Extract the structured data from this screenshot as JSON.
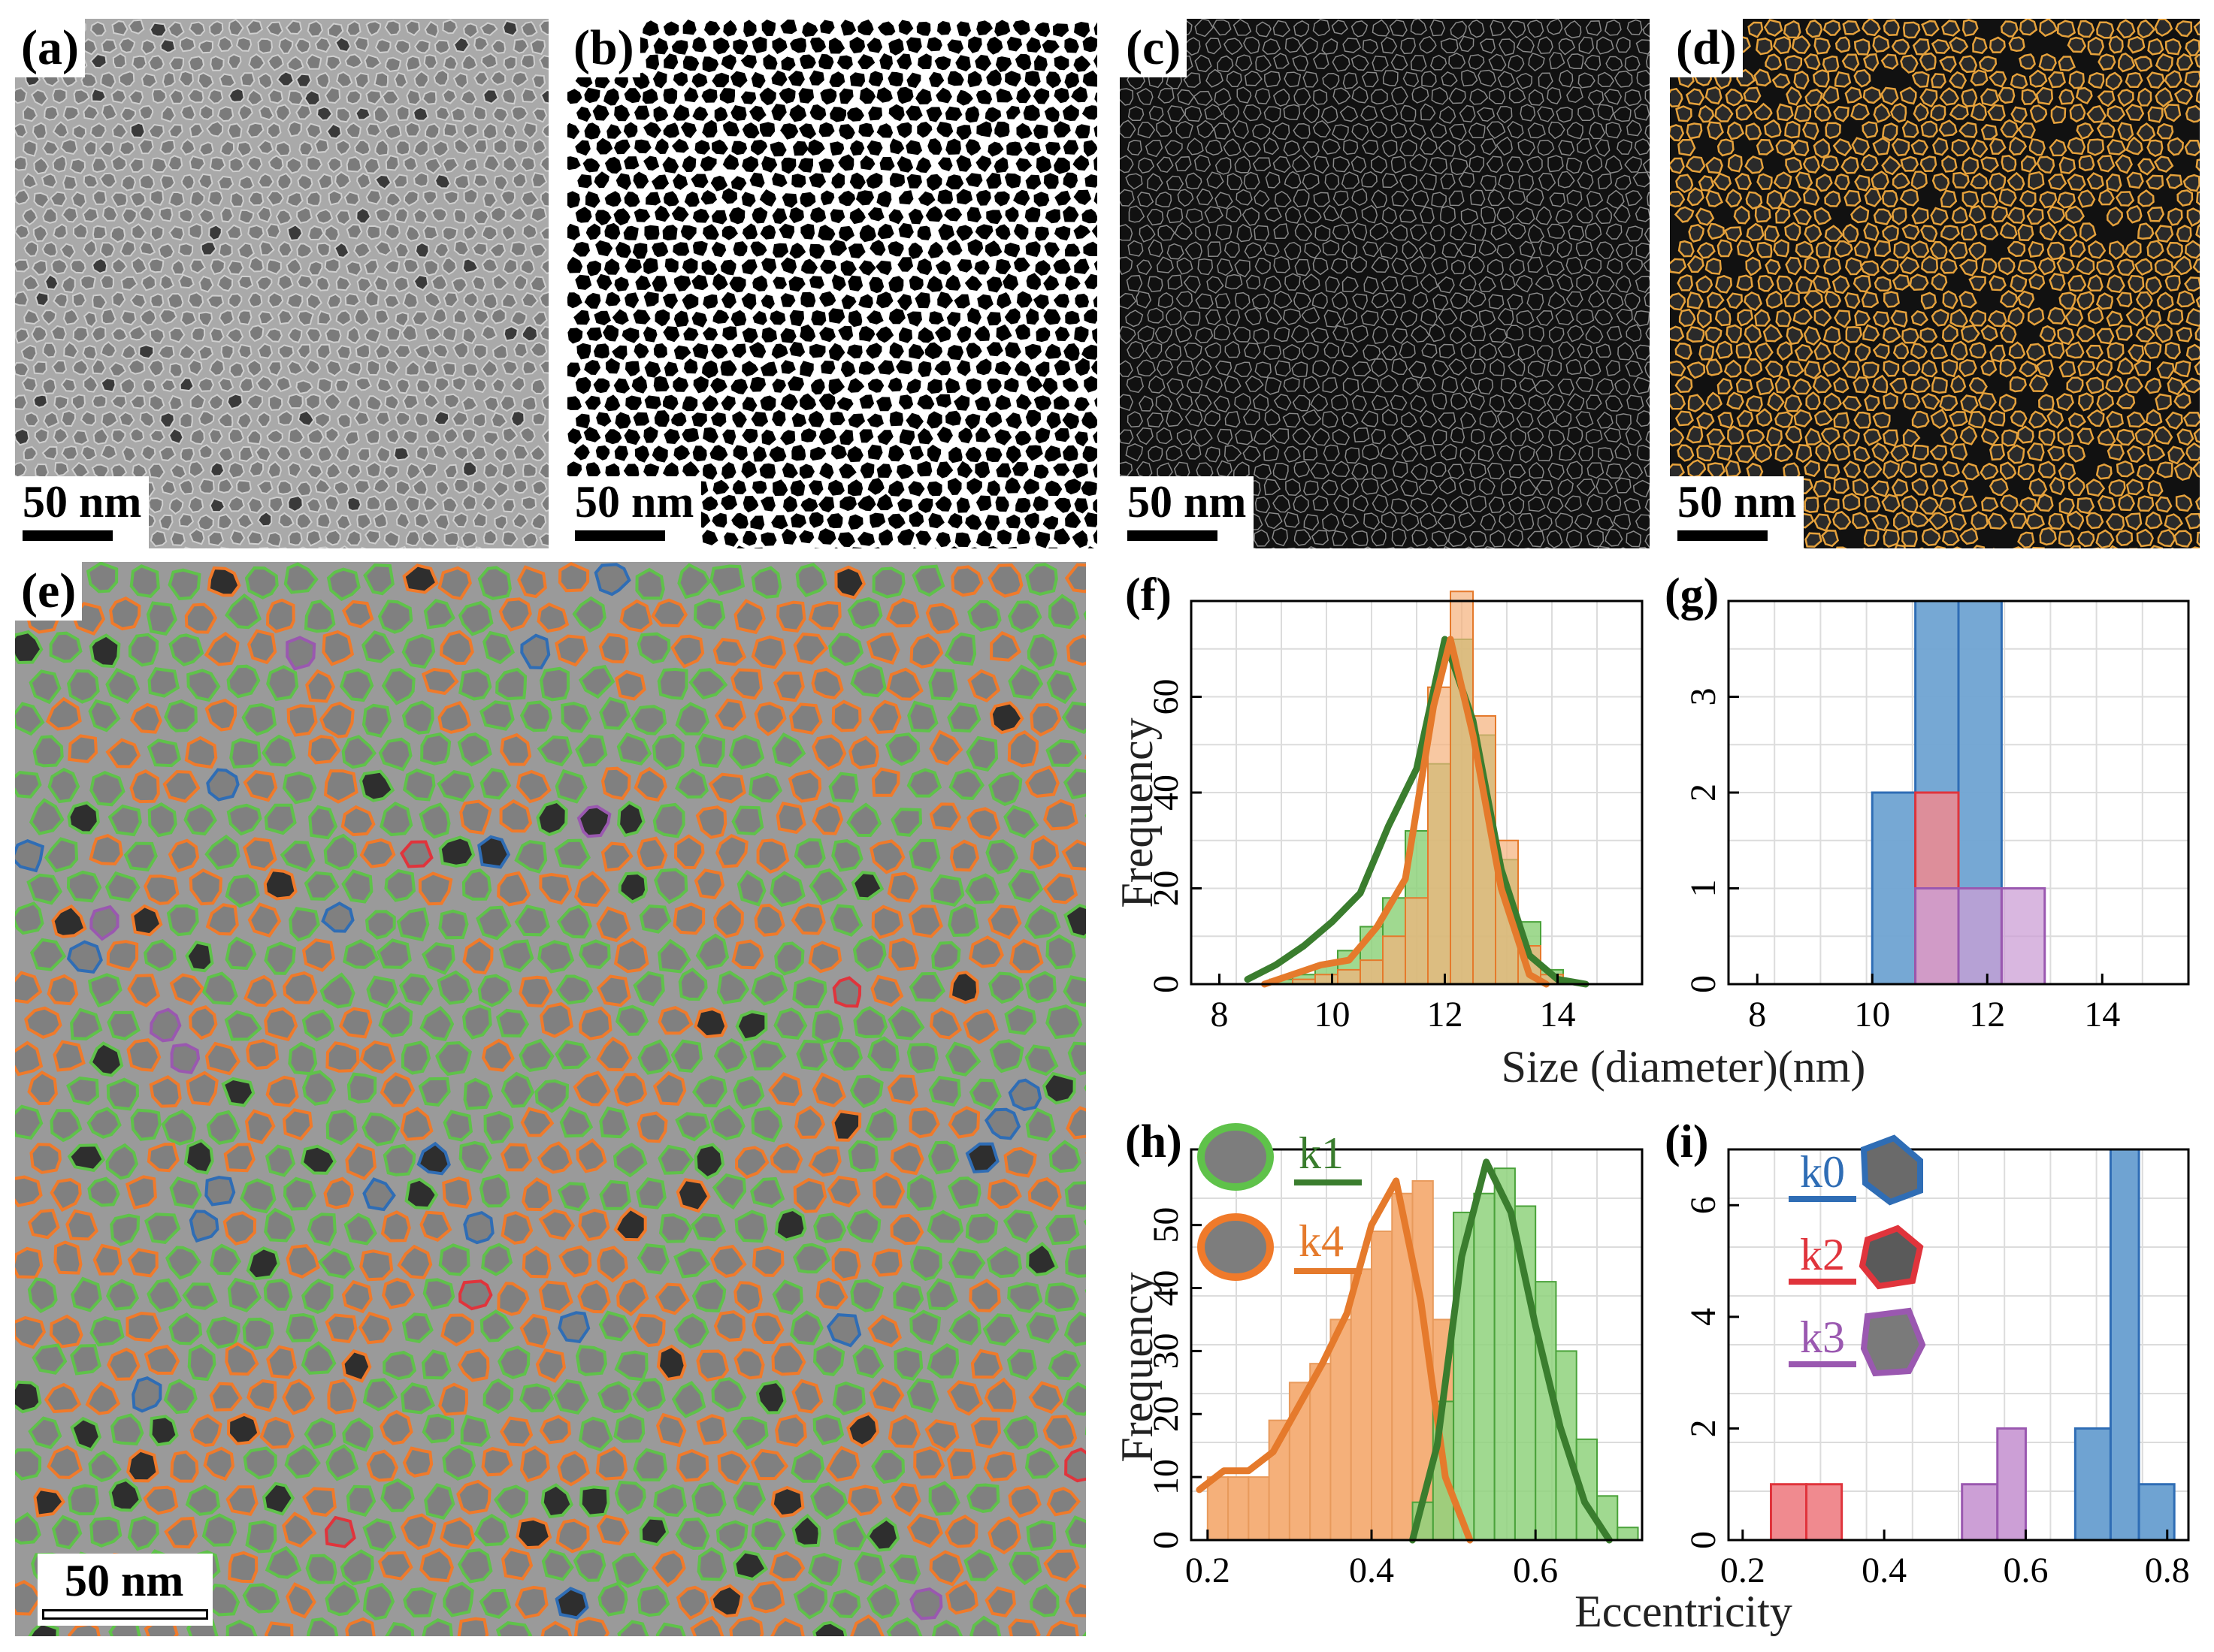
{
  "panels": {
    "a": {
      "label": "(a)",
      "scale_bar": "50 nm"
    },
    "b": {
      "label": "(b)",
      "scale_bar": "50 nm"
    },
    "c": {
      "label": "(c)",
      "scale_bar": "50 nm"
    },
    "d": {
      "label": "(d)",
      "scale_bar": "50 nm"
    },
    "e": {
      "label": "(e)",
      "scale_bar": "50 nm"
    },
    "f": {
      "label": "(f)"
    },
    "g": {
      "label": "(g)"
    },
    "h": {
      "label": "(h)"
    },
    "i": {
      "label": "(i)"
    }
  },
  "colors": {
    "k0": "#2f6db5",
    "k1": "#3a7d2e",
    "k2": "#e0343c",
    "k3": "#9a58b0",
    "k4": "#e57a2c",
    "k1_fill": "#8fd27c",
    "k4_fill": "#f5b07a",
    "k0_fill": "#6fa3d2",
    "k2_fill": "#f08a8f",
    "k3_fill": "#cc9fd6",
    "outline_d": "#e6a23c",
    "contour_green": "#5fc24a",
    "contour_orange": "#f07a2a"
  },
  "legend": {
    "k0": "k0",
    "k1": "k1",
    "k2": "k2",
    "k3": "k3",
    "k4": "k4"
  },
  "chart_data": [
    {
      "id": "f",
      "type": "bar",
      "xlabel": "Size (diameter)(nm)",
      "ylabel": "Frequency",
      "xlim": [
        7.5,
        15.5
      ],
      "ylim": [
        0,
        80
      ],
      "xticks": [
        8,
        10,
        12,
        14
      ],
      "yticks": [
        0,
        20,
        40,
        60
      ],
      "bin_edges": [
        8.5,
        8.9,
        9.3,
        9.7,
        10.1,
        10.5,
        10.9,
        11.3,
        11.7,
        12.1,
        12.5,
        12.9,
        13.3,
        13.7,
        14.1
      ],
      "series": [
        {
          "name": "k1",
          "values": [
            0,
            1,
            2,
            4,
            7,
            12,
            18,
            32,
            46,
            72,
            52,
            26,
            13,
            3
          ]
        },
        {
          "name": "k4",
          "values": [
            0,
            0,
            1,
            2,
            3,
            5,
            10,
            18,
            62,
            82,
            56,
            30,
            8,
            2
          ]
        }
      ],
      "kde": [
        {
          "name": "k1",
          "x": [
            8.5,
            9.0,
            9.5,
            10.0,
            10.5,
            11.0,
            11.5,
            12.0,
            12.5,
            13.0,
            13.5,
            14.0,
            14.5
          ],
          "y": [
            1,
            4,
            8,
            13,
            19,
            33,
            45,
            72,
            55,
            24,
            6,
            1,
            0
          ]
        },
        {
          "name": "k4",
          "x": [
            8.8,
            9.3,
            9.8,
            10.3,
            10.8,
            11.3,
            11.8,
            12.1,
            12.5,
            13.0,
            13.5,
            13.8
          ],
          "y": [
            0,
            2,
            4,
            5,
            12,
            22,
            58,
            72,
            52,
            20,
            2,
            0
          ]
        }
      ]
    },
    {
      "id": "g",
      "type": "bar",
      "xlabel": "Size (diameter)(nm)",
      "ylabel": "",
      "xlim": [
        7.5,
        15.5
      ],
      "ylim": [
        0,
        4
      ],
      "xticks": [
        8,
        10,
        12,
        14
      ],
      "yticks": [
        0,
        1,
        2,
        3
      ],
      "series": [
        {
          "name": "k0",
          "bins": [
            [
              10.0,
              10.75
            ],
            [
              10.75,
              11.5
            ],
            [
              11.5,
              12.25
            ]
          ],
          "values": [
            2,
            4,
            4
          ]
        },
        {
          "name": "k2",
          "bins": [
            [
              10.75,
              11.5
            ]
          ],
          "values": [
            2
          ]
        },
        {
          "name": "k3",
          "bins": [
            [
              10.75,
              11.5
            ],
            [
              11.5,
              12.25
            ],
            [
              12.25,
              13.0
            ]
          ],
          "values": [
            1,
            1,
            1
          ]
        }
      ]
    },
    {
      "id": "h",
      "type": "bar",
      "xlabel": "Eccentricity",
      "ylabel": "Frequency",
      "xlim": [
        0.18,
        0.73
      ],
      "ylim": [
        0,
        62
      ],
      "xticks": [
        0.2,
        0.4,
        0.6
      ],
      "yticks": [
        0,
        10,
        20,
        30,
        40,
        50
      ],
      "series": [
        {
          "name": "k4",
          "bins": [
            0.2,
            0.225,
            0.25,
            0.275,
            0.3,
            0.325,
            0.35,
            0.375,
            0.4,
            0.425,
            0.45,
            0.475,
            0.5
          ],
          "values": [
            10,
            10,
            10,
            19,
            25,
            28,
            35,
            43,
            49,
            55,
            57,
            35
          ]
        },
        {
          "name": "k1",
          "bins": [
            0.45,
            0.475,
            0.5,
            0.525,
            0.55,
            0.575,
            0.6,
            0.625,
            0.65,
            0.675,
            0.7,
            0.725
          ],
          "values": [
            6,
            22,
            52,
            55,
            59,
            53,
            41,
            30,
            16,
            7,
            2
          ]
        }
      ],
      "kde": [
        {
          "name": "k4",
          "x": [
            0.19,
            0.22,
            0.25,
            0.28,
            0.31,
            0.34,
            0.37,
            0.4,
            0.43,
            0.46,
            0.49,
            0.52
          ],
          "y": [
            8,
            11,
            11,
            14,
            21,
            28,
            36,
            50,
            57,
            38,
            10,
            0
          ]
        },
        {
          "name": "k1",
          "x": [
            0.45,
            0.48,
            0.51,
            0.54,
            0.57,
            0.6,
            0.63,
            0.66,
            0.69
          ],
          "y": [
            0,
            15,
            45,
            60,
            52,
            34,
            18,
            6,
            0
          ]
        }
      ]
    },
    {
      "id": "i",
      "type": "bar",
      "xlabel": "Eccentricity",
      "ylabel": "",
      "xlim": [
        0.18,
        0.83
      ],
      "ylim": [
        0,
        7
      ],
      "xticks": [
        0.2,
        0.4,
        0.6,
        0.8
      ],
      "yticks": [
        0,
        2,
        4,
        6
      ],
      "series": [
        {
          "name": "k2",
          "bins": [
            [
              0.24,
              0.29
            ],
            [
              0.29,
              0.34
            ]
          ],
          "values": [
            1,
            1
          ]
        },
        {
          "name": "k3",
          "bins": [
            [
              0.51,
              0.56
            ],
            [
              0.56,
              0.6
            ]
          ],
          "values": [
            1,
            2
          ]
        },
        {
          "name": "k0",
          "bins": [
            [
              0.67,
              0.72
            ],
            [
              0.72,
              0.76
            ],
            [
              0.76,
              0.81
            ]
          ],
          "values": [
            2,
            7,
            1
          ]
        }
      ]
    }
  ]
}
